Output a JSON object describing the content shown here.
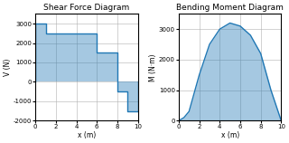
{
  "chart_data": [
    {
      "type": "area",
      "title": "Shear Force Diagram",
      "x_label": "x (m)",
      "y_label": "V (N)",
      "x": [
        0,
        0,
        1,
        1,
        3,
        3,
        6,
        6,
        8,
        8,
        9,
        9,
        10,
        10
      ],
      "values": [
        0,
        3000,
        3000,
        2500,
        2500,
        2500,
        2500,
        1500,
        1500,
        -500,
        -500,
        -1500,
        -1500,
        0
      ],
      "xlim": [
        0,
        10
      ],
      "xticks": [
        0,
        2,
        4,
        6,
        8,
        10
      ],
      "ylim": [
        -2000,
        3500
      ],
      "yticks": [
        -2000,
        -1000,
        0,
        1000,
        2000,
        3000
      ],
      "grid": true
    },
    {
      "type": "area",
      "title": "Bending Moment Diagram",
      "x_label": "x (m)",
      "y_label": "M (N·m)",
      "x": [
        0,
        0.5,
        1,
        2,
        3,
        4,
        5,
        6,
        7,
        8,
        9,
        10
      ],
      "values": [
        0,
        100,
        300,
        1500,
        2500,
        3000,
        3200,
        3100,
        2800,
        2200,
        1000,
        0
      ],
      "xlim": [
        0,
        10
      ],
      "xticks": [
        0,
        2,
        4,
        6,
        8,
        10
      ],
      "ylim": [
        0,
        3500
      ],
      "yticks": [
        0,
        1000,
        2000,
        3000
      ],
      "grid": true
    }
  ]
}
